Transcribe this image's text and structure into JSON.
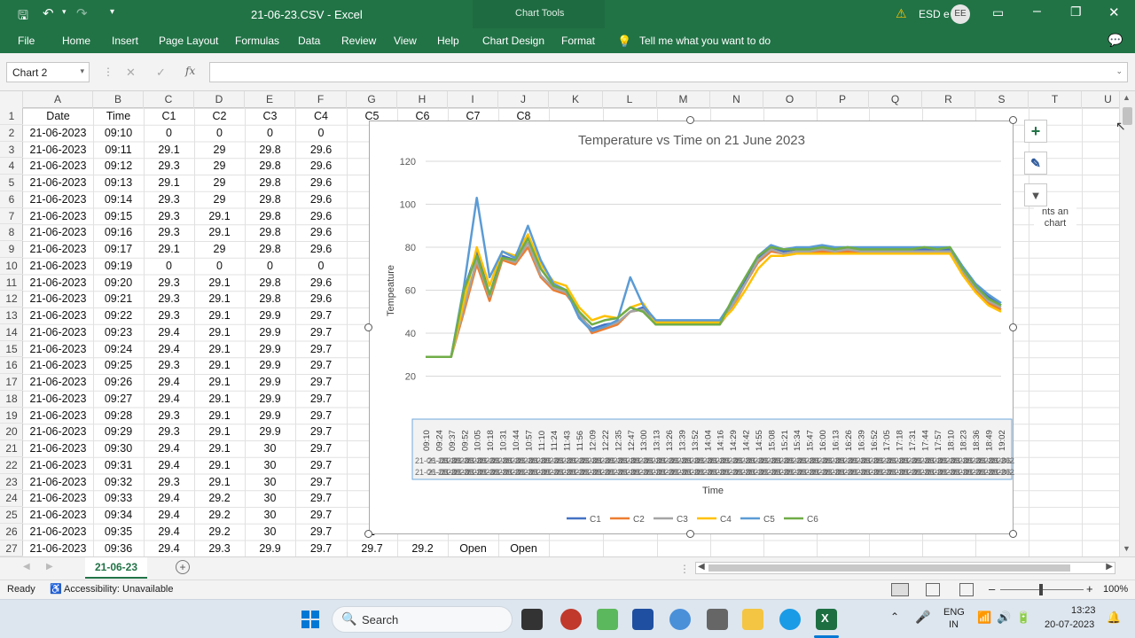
{
  "titlebar": {
    "filename": "21-06-23.CSV",
    "sep": "-",
    "app": "Excel",
    "context_tab": "Chart Tools",
    "user": "ESD e",
    "user_initials": "EE"
  },
  "ribbon": {
    "tabs": [
      "File",
      "Home",
      "Insert",
      "Page Layout",
      "Formulas",
      "Data",
      "Review",
      "View",
      "Help",
      "Chart Design",
      "Format"
    ],
    "tell_me": "Tell me what you want to do"
  },
  "formula_bar": {
    "name_box": "Chart 2",
    "fx": "fx",
    "cancel": "✕",
    "enter": "✓",
    "value": ""
  },
  "columns": [
    "A",
    "B",
    "C",
    "D",
    "E",
    "F",
    "G",
    "H",
    "I",
    "J",
    "K",
    "L",
    "M",
    "N",
    "O",
    "P",
    "Q",
    "R",
    "S",
    "T",
    "U"
  ],
  "rows": [
    "1",
    "2",
    "3",
    "4",
    "5",
    "6",
    "7",
    "8",
    "9",
    "10",
    "11",
    "12",
    "13",
    "14",
    "15",
    "16",
    "17",
    "18",
    "19",
    "20",
    "21",
    "22",
    "23",
    "24",
    "25",
    "26",
    "27"
  ],
  "sheet": {
    "header": [
      "Date",
      "Time",
      "C1",
      "C2",
      "C3",
      "C4",
      "C5",
      "C6",
      "C7",
      "C8"
    ],
    "data": [
      [
        "21-06-2023",
        "09:10",
        "0",
        "0",
        "0",
        "0"
      ],
      [
        "21-06-2023",
        "09:11",
        "29.1",
        "29",
        "29.8",
        "29.6"
      ],
      [
        "21-06-2023",
        "09:12",
        "29.3",
        "29",
        "29.8",
        "29.6"
      ],
      [
        "21-06-2023",
        "09:13",
        "29.1",
        "29",
        "29.8",
        "29.6"
      ],
      [
        "21-06-2023",
        "09:14",
        "29.3",
        "29",
        "29.8",
        "29.6"
      ],
      [
        "21-06-2023",
        "09:15",
        "29.3",
        "29.1",
        "29.8",
        "29.6"
      ],
      [
        "21-06-2023",
        "09:16",
        "29.3",
        "29.1",
        "29.8",
        "29.6"
      ],
      [
        "21-06-2023",
        "09:17",
        "29.1",
        "29",
        "29.8",
        "29.6"
      ],
      [
        "21-06-2023",
        "09:19",
        "0",
        "0",
        "0",
        "0"
      ],
      [
        "21-06-2023",
        "09:20",
        "29.3",
        "29.1",
        "29.8",
        "29.6"
      ],
      [
        "21-06-2023",
        "09:21",
        "29.3",
        "29.1",
        "29.8",
        "29.6"
      ],
      [
        "21-06-2023",
        "09:22",
        "29.3",
        "29.1",
        "29.9",
        "29.7"
      ],
      [
        "21-06-2023",
        "09:23",
        "29.4",
        "29.1",
        "29.9",
        "29.7"
      ],
      [
        "21-06-2023",
        "09:24",
        "29.4",
        "29.1",
        "29.9",
        "29.7"
      ],
      [
        "21-06-2023",
        "09:25",
        "29.3",
        "29.1",
        "29.9",
        "29.7"
      ],
      [
        "21-06-2023",
        "09:26",
        "29.4",
        "29.1",
        "29.9",
        "29.7"
      ],
      [
        "21-06-2023",
        "09:27",
        "29.4",
        "29.1",
        "29.9",
        "29.7"
      ],
      [
        "21-06-2023",
        "09:28",
        "29.3",
        "29.1",
        "29.9",
        "29.7"
      ],
      [
        "21-06-2023",
        "09:29",
        "29.3",
        "29.1",
        "29.9",
        "29.7"
      ],
      [
        "21-06-2023",
        "09:30",
        "29.4",
        "29.1",
        "30",
        "29.7"
      ],
      [
        "21-06-2023",
        "09:31",
        "29.4",
        "29.1",
        "30",
        "29.7"
      ],
      [
        "21-06-2023",
        "09:32",
        "29.3",
        "29.1",
        "30",
        "29.7"
      ],
      [
        "21-06-2023",
        "09:33",
        "29.4",
        "29.2",
        "30",
        "29.7"
      ],
      [
        "21-06-2023",
        "09:34",
        "29.4",
        "29.2",
        "30",
        "29.7"
      ],
      [
        "21-06-2023",
        "09:35",
        "29.4",
        "29.2",
        "30",
        "29.7"
      ],
      [
        "21-06-2023",
        "09:36",
        "29.4",
        "29.3",
        "29.9",
        "29.7",
        "29.7",
        "29.2",
        "Open",
        "Open"
      ]
    ],
    "g_visible": [
      "2",
      "2",
      "2",
      "2",
      "2",
      "2",
      "2",
      "",
      "2",
      "2",
      "2",
      "2",
      "2",
      "2",
      "2",
      "2",
      "2",
      "2",
      "2",
      "2",
      "2",
      "2",
      "2",
      "2",
      "2"
    ],
    "tooltip_frag": [
      "nts an",
      "chart"
    ]
  },
  "chart_data": {
    "type": "line",
    "title": "Temperature vs Time on 21 June 2023",
    "xlabel": "Time",
    "ylabel": "Tempeature",
    "ylim": [
      0,
      120
    ],
    "yticks": [
      "120",
      "100",
      "80",
      "60",
      "40",
      "20"
    ],
    "legend_position": "bottom",
    "x_tick_labels": [
      "09:10",
      "09:24",
      "09:37",
      "09:52",
      "10:05",
      "10:18",
      "10:31",
      "10:44",
      "10:57",
      "11:10",
      "11:24",
      "11:43",
      "11:56",
      "12:09",
      "12:22",
      "12:35",
      "12:47",
      "13:00",
      "13:13",
      "13:26",
      "13:39",
      "13:52",
      "14:04",
      "14:16",
      "14:29",
      "14:42",
      "14:55",
      "15:08",
      "15:21",
      "15:34",
      "15:47",
      "16:00",
      "16:13",
      "16:26",
      "16:39",
      "16:52",
      "17:05",
      "17:18",
      "17:31",
      "17:44",
      "17:57",
      "18:10",
      "18:23",
      "18:36",
      "18:49",
      "19:02"
    ],
    "x_axis_date_row": "21-06-2023",
    "series": [
      {
        "name": "C1",
        "color": "#4472c4",
        "values": [
          29,
          29,
          29,
          60,
          78,
          58,
          76,
          74,
          85,
          70,
          62,
          60,
          48,
          42,
          44,
          45,
          50,
          52,
          45,
          45,
          45,
          45,
          45,
          45,
          55,
          65,
          75,
          80,
          78,
          79,
          79,
          80,
          79,
          80,
          79,
          79,
          79,
          79,
          79,
          79,
          79,
          79,
          70,
          62,
          57,
          53
        ]
      },
      {
        "name": "C2",
        "color": "#ed7d31",
        "values": [
          29,
          29,
          29,
          50,
          72,
          55,
          74,
          72,
          80,
          66,
          60,
          58,
          50,
          40,
          42,
          44,
          50,
          51,
          44,
          44,
          44,
          44,
          44,
          44,
          52,
          63,
          73,
          78,
          77,
          78,
          78,
          78,
          78,
          78,
          78,
          78,
          78,
          78,
          78,
          78,
          78,
          78,
          68,
          60,
          54,
          51
        ]
      },
      {
        "name": "C3",
        "color": "#a5a5a5",
        "values": [
          29,
          29,
          29,
          52,
          74,
          57,
          75,
          73,
          82,
          67,
          61,
          59,
          49,
          41,
          43,
          45,
          50,
          51,
          44,
          44,
          44,
          44,
          44,
          44,
          53,
          63,
          74,
          79,
          77,
          78,
          78,
          79,
          78,
          79,
          78,
          78,
          78,
          78,
          78,
          78,
          78,
          78,
          69,
          61,
          55,
          52
        ]
      },
      {
        "name": "C4",
        "color": "#ffc000",
        "values": [
          29,
          29,
          29,
          55,
          80,
          62,
          78,
          76,
          86,
          72,
          64,
          62,
          52,
          46,
          48,
          47,
          52,
          54,
          45,
          45,
          45,
          45,
          45,
          45,
          51,
          60,
          70,
          76,
          76,
          77,
          77,
          77,
          77,
          77,
          77,
          77,
          77,
          77,
          77,
          77,
          77,
          77,
          67,
          59,
          53,
          50
        ]
      },
      {
        "name": "C5",
        "color": "#5b9bd5",
        "values": [
          29,
          29,
          29,
          62,
          103,
          66,
          78,
          75,
          90,
          74,
          63,
          60,
          47,
          41,
          43,
          46,
          66,
          53,
          46,
          46,
          46,
          46,
          46,
          46,
          55,
          66,
          76,
          81,
          79,
          80,
          80,
          81,
          80,
          80,
          80,
          80,
          80,
          80,
          80,
          80,
          80,
          80,
          71,
          63,
          58,
          54
        ]
      },
      {
        "name": "C6",
        "color": "#70ad47",
        "values": [
          29,
          29,
          29,
          60,
          76,
          58,
          75,
          74,
          84,
          70,
          62,
          60,
          50,
          44,
          46,
          47,
          52,
          50,
          44,
          44,
          44,
          44,
          44,
          44,
          56,
          66,
          76,
          80,
          79,
          79,
          79,
          80,
          79,
          80,
          79,
          79,
          79,
          79,
          79,
          80,
          79,
          80,
          70,
          62,
          56,
          53
        ]
      }
    ]
  },
  "sheet_tabs": {
    "active": "21-06-23"
  },
  "status": {
    "ready": "Ready",
    "accessibility": "Accessibility: Unavailable",
    "zoom": "100%"
  },
  "taskbar": {
    "search": "Search",
    "lang_top": "ENG",
    "lang_bottom": "IN",
    "time": "13:23",
    "date": "20-07-2023"
  }
}
